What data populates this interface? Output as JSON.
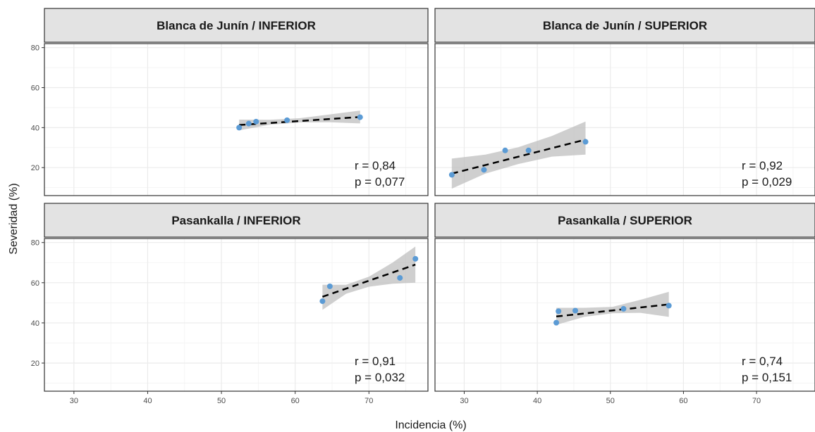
{
  "chart_data": {
    "type": "scatter",
    "xlabel": "Incidencia (%)",
    "ylabel": "Severidad (%)",
    "xlim": [
      26,
      78
    ],
    "ylim": [
      6,
      82
    ],
    "x_ticks": [
      30,
      40,
      50,
      60,
      70
    ],
    "y_ticks": [
      20,
      40,
      60,
      80
    ],
    "grid": true,
    "point_color": "#5b9bd5",
    "fit_line_color": "#000000",
    "band_color": "#bfbfbf",
    "strip_color": "#e3e3e3",
    "panels": [
      {
        "title": "Blanca de Junín / INFERIOR",
        "points": [
          {
            "x": 52.4,
            "y": 40.0
          },
          {
            "x": 53.7,
            "y": 42.0
          },
          {
            "x": 54.7,
            "y": 43.0
          },
          {
            "x": 58.9,
            "y": 43.7
          },
          {
            "x": 68.8,
            "y": 45.2
          }
        ],
        "fit": {
          "x0": 52.4,
          "y0": 41.3,
          "x1": 68.8,
          "y1": 45.3
        },
        "band": [
          {
            "x": 52.4,
            "lo": 38.6,
            "hi": 44.0
          },
          {
            "x": 56.5,
            "lo": 41.4,
            "hi": 43.9
          },
          {
            "x": 60.6,
            "lo": 42.6,
            "hi": 44.7
          },
          {
            "x": 64.7,
            "lo": 42.7,
            "hi": 46.6
          },
          {
            "x": 68.8,
            "lo": 42.1,
            "hi": 48.5
          }
        ],
        "annotation": {
          "r": "r = 0,84",
          "p": "p = 0,077"
        }
      },
      {
        "title": "Blanca de Junín / SUPERIOR",
        "points": [
          {
            "x": 28.3,
            "y": 16.4
          },
          {
            "x": 32.7,
            "y": 18.9
          },
          {
            "x": 35.6,
            "y": 28.6
          },
          {
            "x": 38.8,
            "y": 28.6
          },
          {
            "x": 46.6,
            "y": 32.9
          }
        ],
        "fit": {
          "x0": 28.3,
          "y0": 17.0,
          "x1": 46.6,
          "y1": 34.0
        },
        "band": [
          {
            "x": 28.3,
            "lo": 9.5,
            "hi": 24.5
          },
          {
            "x": 32.9,
            "lo": 17.0,
            "hi": 26.5
          },
          {
            "x": 37.4,
            "lo": 21.8,
            "hi": 30.2
          },
          {
            "x": 42.0,
            "lo": 25.5,
            "hi": 35.8
          },
          {
            "x": 46.6,
            "lo": 26.5,
            "hi": 43.0
          }
        ],
        "annotation": {
          "r": "r = 0,92",
          "p": "p = 0,029"
        }
      },
      {
        "title": "Pasankalla / INFERIOR",
        "points": [
          {
            "x": 63.7,
            "y": 50.8
          },
          {
            "x": 64.7,
            "y": 58.2
          },
          {
            "x": 74.2,
            "y": 62.4
          },
          {
            "x": 76.3,
            "y": 71.9
          }
        ],
        "fit": {
          "x0": 63.7,
          "y0": 53.0,
          "x1": 76.3,
          "y1": 69.0
        },
        "band": [
          {
            "x": 63.7,
            "lo": 46.5,
            "hi": 59.0
          },
          {
            "x": 66.9,
            "lo": 54.5,
            "hi": 59.0
          },
          {
            "x": 70.0,
            "lo": 58.0,
            "hi": 63.0
          },
          {
            "x": 73.2,
            "lo": 59.5,
            "hi": 70.0
          },
          {
            "x": 76.3,
            "lo": 60.0,
            "hi": 78.0
          }
        ],
        "annotation": {
          "r": "r = 0,91",
          "p": "p = 0,032"
        }
      },
      {
        "title": "Pasankalla / SUPERIOR",
        "points": [
          {
            "x": 42.6,
            "y": 40.1
          },
          {
            "x": 42.9,
            "y": 45.8
          },
          {
            "x": 45.2,
            "y": 46.1
          },
          {
            "x": 51.8,
            "y": 47.0
          },
          {
            "x": 58.0,
            "y": 48.6
          }
        ],
        "fit": {
          "x0": 42.6,
          "y0": 43.2,
          "x1": 58.0,
          "y1": 49.2
        },
        "band": [
          {
            "x": 42.6,
            "lo": 39.0,
            "hi": 47.5
          },
          {
            "x": 46.4,
            "lo": 43.0,
            "hi": 47.5
          },
          {
            "x": 50.3,
            "lo": 44.8,
            "hi": 48.0
          },
          {
            "x": 54.1,
            "lo": 45.0,
            "hi": 51.5
          },
          {
            "x": 58.0,
            "lo": 43.0,
            "hi": 55.5
          }
        ],
        "annotation": {
          "r": "r = 0,74",
          "p": "p = 0,151"
        }
      }
    ]
  }
}
